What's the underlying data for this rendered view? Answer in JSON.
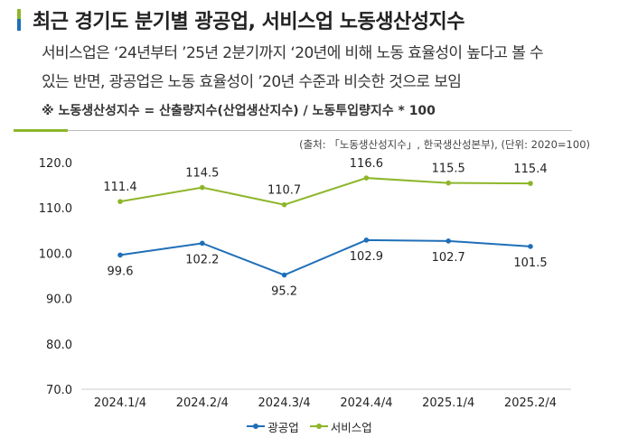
{
  "header": {
    "title": "최근 경기도 분기별 광공업, 서비스업 노동생산성지수",
    "desc_line1": "서비스업은 ‘24년부터 ’25년 2분기까지 ‘20년에 비해 노동 효율성이 높다고 볼 수",
    "desc_line2": "있는 반면, 광공업은 노동 효율성이 ’20년 수준과 비슷한 것으로 보임",
    "note": "※ 노동생산성지수 = 산출량지수(산업생산지수) / 노동투입량지수 * 100",
    "source": "(출처: 「노동생산성지수」, 한국생산성본부), (단위: 2020=100)"
  },
  "chart_data": {
    "type": "line",
    "categories": [
      "2024.1/4",
      "2024.2/4",
      "2024.3/4",
      "2024.4/4",
      "2025.1/4",
      "2025.2/4"
    ],
    "ylim": [
      70,
      120
    ],
    "yticks": [
      "70.0",
      "80.0",
      "90.0",
      "100.0",
      "110.0",
      "120.0"
    ],
    "grid": false,
    "legend_position": "bottom",
    "series": [
      {
        "name": "광공업",
        "color": "#1f6fb8",
        "values": [
          99.6,
          102.2,
          95.2,
          102.9,
          102.7,
          101.5
        ],
        "labels": [
          "99.6",
          "102.2",
          "95.2",
          "102.9",
          "102.7",
          "101.5"
        ]
      },
      {
        "name": "서비스업",
        "color": "#8db62a",
        "values": [
          111.4,
          114.5,
          110.7,
          116.6,
          115.5,
          115.4
        ],
        "labels": [
          "111.4",
          "114.5",
          "110.7",
          "116.6",
          "115.5",
          "115.4"
        ]
      }
    ]
  }
}
